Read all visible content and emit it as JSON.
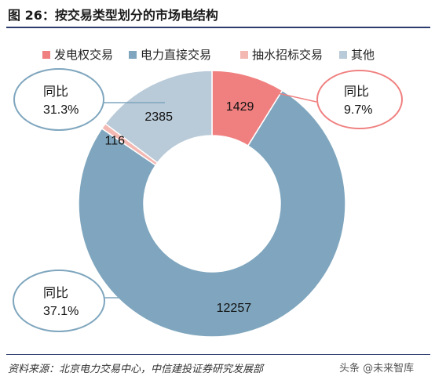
{
  "header": {
    "title": "图 26：按交易类型划分的市场电结构"
  },
  "chart_data": {
    "type": "pie",
    "style": "donut",
    "series": [
      {
        "name": "发电权交易",
        "value": 1429,
        "color": "#f08080"
      },
      {
        "name": "电力直接交易",
        "value": 12257,
        "color": "#7fa6be"
      },
      {
        "name": "抽水招标交易",
        "value": 116,
        "color": "#f4b8b2"
      },
      {
        "name": "其他",
        "value": 2385,
        "color": "#b9cad8"
      }
    ],
    "legend_position": "top",
    "callouts": [
      {
        "line1": "同比",
        "line2": "9.7%",
        "color": "#f08080"
      },
      {
        "line1": "同比",
        "line2": "31.3%",
        "color": "#7fa6be"
      },
      {
        "line1": "同比",
        "line2": "37.1%",
        "color": "#7fa6be"
      }
    ]
  },
  "footer": {
    "source": "资料来源：北京电力交易中心，中信建投证券研究发展部",
    "watermark": "头条 @未来智库"
  }
}
